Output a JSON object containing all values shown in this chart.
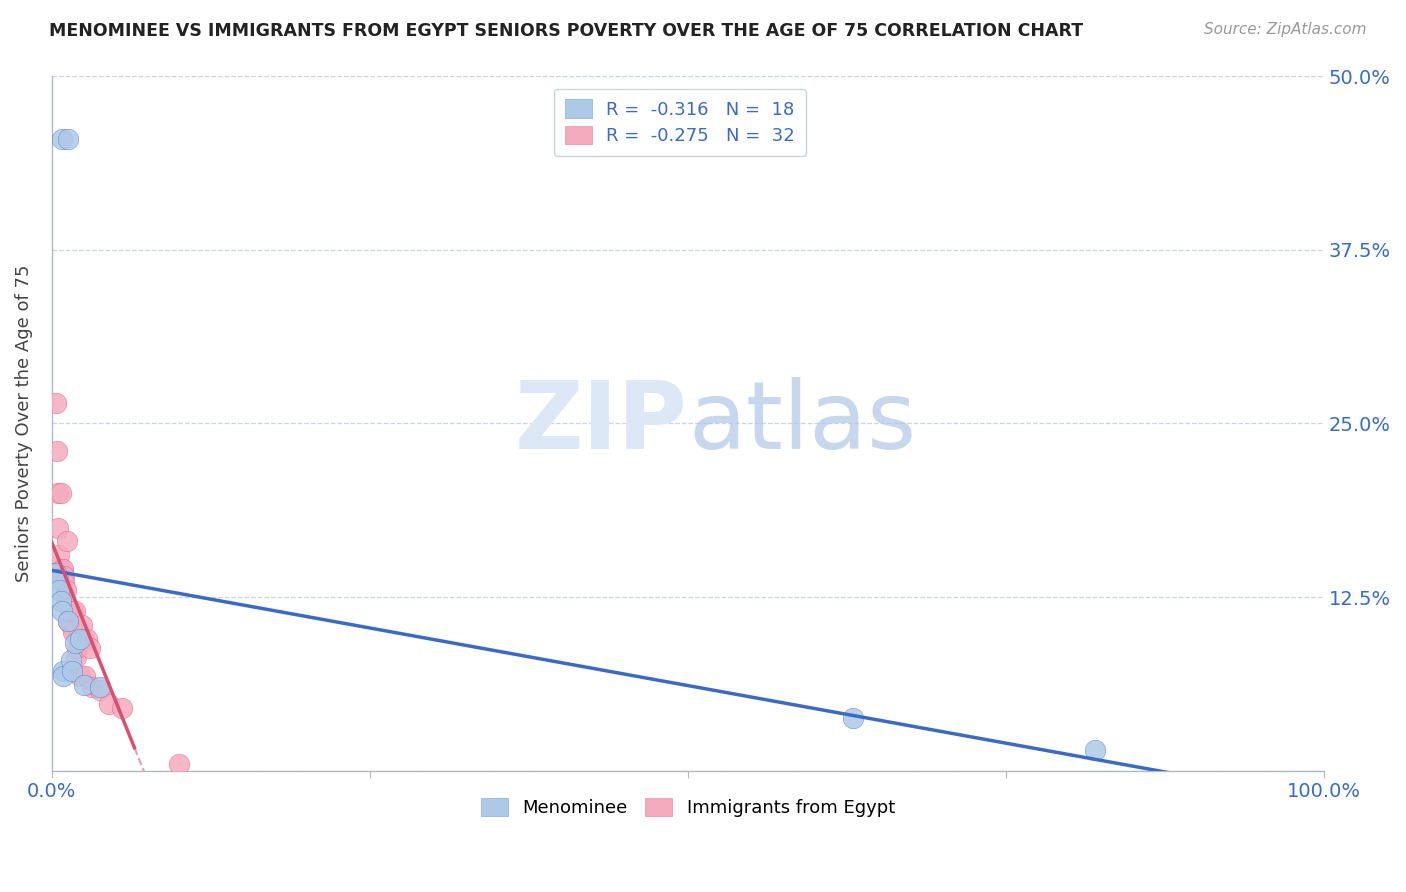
{
  "title": "MENOMINEE VS IMMIGRANTS FROM EGYPT SENIORS POVERTY OVER THE AGE OF 75 CORRELATION CHART",
  "source": "Source: ZipAtlas.com",
  "ylabel": "Seniors Poverty Over the Age of 75",
  "xlim": [
    0,
    1.0
  ],
  "ylim": [
    0,
    0.5
  ],
  "legend_r_blue": "-0.316",
  "legend_n_blue": "18",
  "legend_r_pink": "-0.275",
  "legend_n_pink": "32",
  "series1_color": "#adc9e8",
  "series2_color": "#f5abbe",
  "trendline1_color": "#3a6ac8",
  "trendline2_color": "#d94f72",
  "watermark_color": "#dce8f5",
  "background_color": "#ffffff",
  "grid_color": "#c8d4e8",
  "menominee_x": [
    0.008,
    0.013,
    0.003,
    0.005,
    0.006,
    0.007,
    0.008,
    0.009,
    0.009,
    0.013,
    0.015,
    0.016,
    0.018,
    0.022,
    0.025,
    0.038,
    0.63,
    0.82
  ],
  "menominee_y": [
    0.455,
    0.455,
    0.142,
    0.138,
    0.13,
    0.122,
    0.115,
    0.072,
    0.068,
    0.108,
    0.08,
    0.072,
    0.092,
    0.095,
    0.062,
    0.06,
    0.038,
    0.015
  ],
  "egypt_x": [
    0.003,
    0.004,
    0.005,
    0.005,
    0.006,
    0.007,
    0.008,
    0.009,
    0.01,
    0.01,
    0.011,
    0.011,
    0.012,
    0.013,
    0.014,
    0.015,
    0.016,
    0.017,
    0.018,
    0.019,
    0.02,
    0.022,
    0.024,
    0.025,
    0.026,
    0.028,
    0.03,
    0.032,
    0.038,
    0.045,
    0.055,
    0.1
  ],
  "egypt_y": [
    0.265,
    0.23,
    0.2,
    0.175,
    0.155,
    0.2,
    0.145,
    0.145,
    0.14,
    0.135,
    0.13,
    0.12,
    0.165,
    0.108,
    0.11,
    0.105,
    0.115,
    0.1,
    0.115,
    0.082,
    0.088,
    0.068,
    0.105,
    0.095,
    0.068,
    0.095,
    0.088,
    0.06,
    0.058,
    0.048,
    0.045,
    0.005
  ],
  "trendline_blue_x0": 0.0,
  "trendline_blue_x1": 1.0,
  "trendline_pink_solid_x1": 0.065,
  "trendline_pink_dash_x1": 0.19
}
